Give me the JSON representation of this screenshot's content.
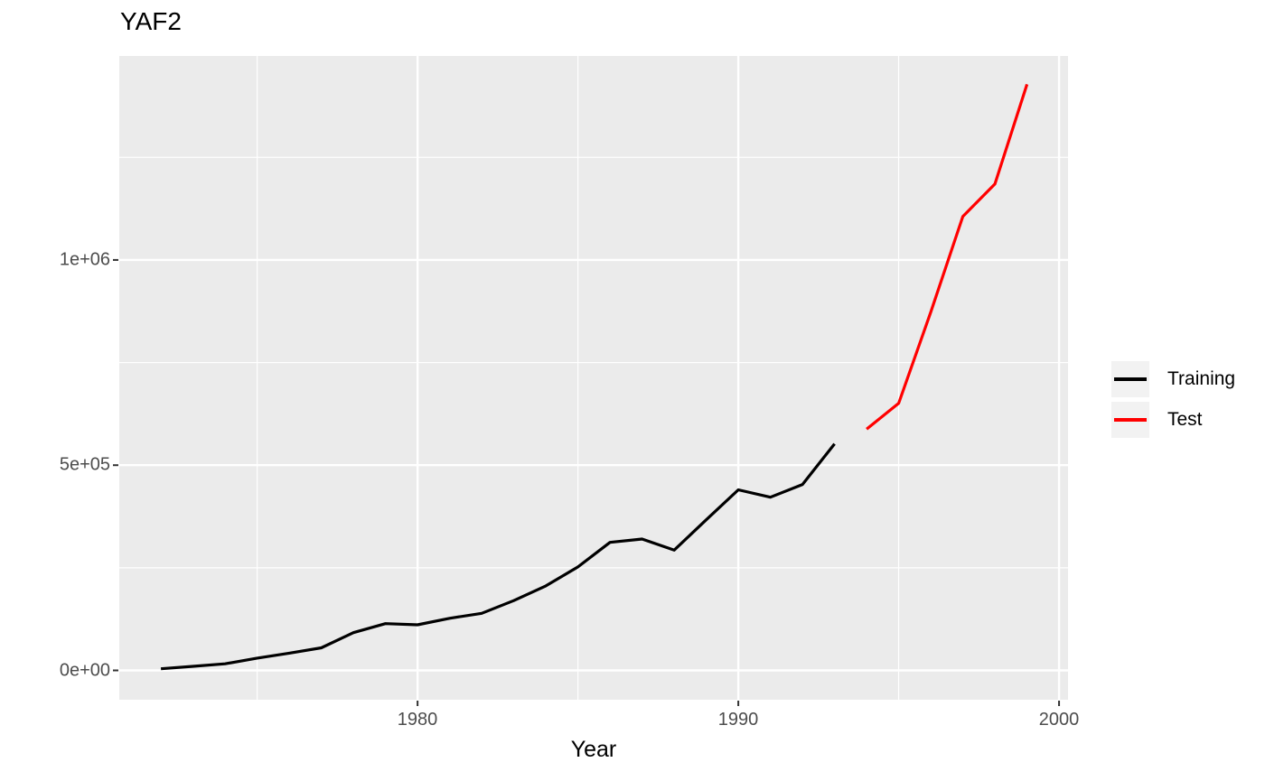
{
  "chart_data": {
    "type": "line",
    "title": "YAF2",
    "xlabel": "Year",
    "ylabel": "",
    "grid": true,
    "legend_position": "right",
    "panel_background": "#EBEBEB",
    "grid_color": "#FFFFFF",
    "axis_text_color": "#4D4D4D",
    "tick_color": "#333333",
    "xlim": [
      1970.7,
      2000.28
    ],
    "ylim": [
      -71500,
      1497000
    ],
    "x_axis": {
      "major_ticks": [
        1980,
        1990,
        2000
      ],
      "tick_labels": [
        "1980",
        "1990",
        "2000"
      ],
      "minor_ticks": [
        1975,
        1985,
        1995
      ]
    },
    "y_axis": {
      "major_ticks": [
        0,
        500000,
        1000000
      ],
      "tick_labels": [
        "0e+00",
        "5e+05",
        "1e+06"
      ],
      "minor_ticks": [
        250000,
        750000,
        1250000
      ]
    },
    "series": [
      {
        "name": "Training",
        "color": "#000000",
        "x": [
          1972,
          1973,
          1974,
          1975,
          1976,
          1977,
          1978,
          1979,
          1980,
          1981,
          1982,
          1983,
          1984,
          1985,
          1986,
          1987,
          1988,
          1989,
          1990,
          1991,
          1992,
          1993
        ],
        "values": [
          4000,
          10000,
          16000,
          30000,
          42000,
          55000,
          92000,
          114000,
          111000,
          127000,
          139000,
          170000,
          206000,
          252000,
          312000,
          320000,
          293000,
          367000,
          440000,
          422000,
          453000,
          552000
        ]
      },
      {
        "name": "Test",
        "color": "#FF0000",
        "x": [
          1994,
          1995,
          1996,
          1997,
          1998,
          1999
        ],
        "values": [
          588000,
          651000,
          873000,
          1106000,
          1185000,
          1428000
        ]
      }
    ],
    "legend": {
      "key_background": "#F2F2F2"
    }
  }
}
